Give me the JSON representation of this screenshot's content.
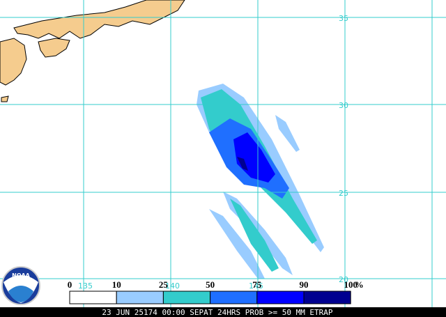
{
  "map": {
    "latitude_labels": [
      "35",
      "30",
      "25",
      "20"
    ],
    "longitude_labels": [
      "135",
      "140",
      "145"
    ],
    "logo": "NOAA",
    "legend": {
      "labels": [
        "0",
        "10",
        "25",
        "50",
        "75",
        "90",
        "100"
      ],
      "unit": "%",
      "colors": [
        "#ffffff",
        "#99ccff",
        "#33cccc",
        "#1f6fff",
        "#0000ff",
        "#000090"
      ]
    },
    "footer": "23 JUN 25174 00:00 SEPAT 24HRS PROB >= 50 MM ETRAP"
  }
}
